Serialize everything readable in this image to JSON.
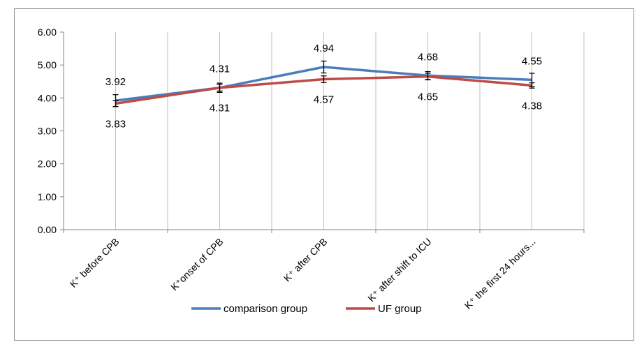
{
  "chart_data": {
    "type": "line",
    "title": "",
    "xlabel": "",
    "ylabel": "",
    "categories": [
      "K⁺ before CPB",
      "K⁺onset of CPB",
      "K⁺ after CPB",
      "K⁺ after shift to ICU",
      "K⁺ the first 24 hours..."
    ],
    "ylim": [
      0,
      6
    ],
    "yticks": [
      "0.00",
      "1.00",
      "2.00",
      "3.00",
      "4.00",
      "5.00",
      "6.00"
    ],
    "grid": "vertical",
    "legend_position": "bottom",
    "series": [
      {
        "name": "comparison group",
        "color": "#4a7ebb",
        "values": [
          3.92,
          4.31,
          4.94,
          4.68,
          4.55
        ],
        "labels": [
          "3.92",
          "4.31",
          "4.94",
          "4.68",
          "4.55"
        ],
        "error": [
          0.18,
          0.14,
          0.18,
          0.12,
          0.2
        ]
      },
      {
        "name": "UF group",
        "color": "#be4b48",
        "values": [
          3.83,
          4.31,
          4.57,
          4.65,
          4.38
        ],
        "labels": [
          "3.83",
          "4.31",
          "4.57",
          "4.65",
          "4.38"
        ],
        "error": [
          0.09,
          0.1,
          0.1,
          0.1,
          0.08
        ]
      }
    ]
  }
}
